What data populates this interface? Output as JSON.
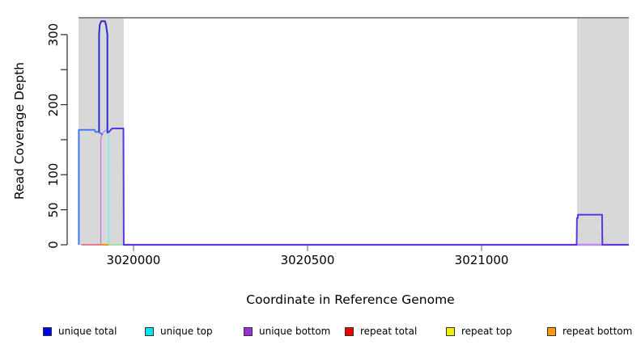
{
  "figure": {
    "ylabel": "Read Coverage Depth",
    "xlabel": "Coordinate in Reference Genome"
  },
  "chart_data": {
    "type": "line",
    "title": "",
    "xlabel": "Coordinate in Reference Genome",
    "ylabel": "Read Coverage Depth",
    "xlim": [
      3019842,
      3021423
    ],
    "ylim": [
      0,
      324
    ],
    "grid": false,
    "legend_position": "bottom",
    "x_ticks": [
      {
        "value": 3020000,
        "label": "3020000"
      },
      {
        "value": 3020500,
        "label": "3020500"
      },
      {
        "value": 3021000,
        "label": "3021000"
      }
    ],
    "y_ticks": [
      {
        "value": 0,
        "label": "0"
      },
      {
        "value": 50,
        "label": "50"
      },
      {
        "value": 100,
        "label": "100"
      },
      {
        "value": 150,
        "label": ""
      },
      {
        "value": 200,
        "label": "200"
      },
      {
        "value": 250,
        "label": ""
      },
      {
        "value": 300,
        "label": "300"
      }
    ],
    "highlight_regions": [
      {
        "name": "shaded-region-left",
        "x0": 3019842,
        "x1": 3019972,
        "color": "#d8d8d8"
      },
      {
        "name": "shaded-region-right",
        "x0": 3021274,
        "x1": 3021423,
        "color": "#d8d8d8"
      }
    ],
    "series": [
      {
        "name": "repeat-total-baseline",
        "color": "#EE3366",
        "width": 1.2,
        "points": [
          [
            3019850,
            0
          ],
          [
            3019904,
            0
          ]
        ]
      },
      {
        "name": "repeat-bottom-baseline",
        "color": "#FF9900",
        "width": 2,
        "points": [
          [
            3019904,
            0
          ],
          [
            3019930,
            0
          ]
        ]
      },
      {
        "name": "baseline-overlap-left",
        "color": "#8FD98F",
        "width": 1.6,
        "points": [
          [
            3019930,
            0
          ],
          [
            3019971,
            0
          ]
        ]
      },
      {
        "name": "baseline-overlap-right",
        "color": "#8FD98F",
        "width": 1.6,
        "points": [
          [
            3021277,
            0
          ],
          [
            3021345,
            0
          ]
        ]
      },
      {
        "name": "unique-bottom-spike",
        "color": "#CD6FE8",
        "width": 1.2,
        "points": [
          [
            3019906,
            0
          ],
          [
            3019906,
            150
          ],
          [
            3019909,
            158
          ],
          [
            3019916,
            162
          ],
          [
            3019922,
            163
          ]
        ]
      },
      {
        "name": "unique-top-spike",
        "color": "#7FE8EE",
        "width": 1.6,
        "points": [
          [
            3019929,
            0
          ],
          [
            3019929,
            158
          ],
          [
            3019926,
            163
          ],
          [
            3019919,
            165
          ]
        ]
      },
      {
        "name": "unique-bottom-zero-line",
        "color": "#BD8BF2",
        "width": 2.6,
        "points": [
          [
            3019972,
            0
          ],
          [
            3021423,
            0
          ]
        ]
      },
      {
        "name": "unique-total-left-block",
        "color": "#4579EE",
        "width": 2,
        "points": [
          [
            3019843,
            0
          ],
          [
            3019843,
            164
          ],
          [
            3019888,
            164
          ],
          [
            3019891,
            161
          ],
          [
            3019901,
            161
          ],
          [
            3019906,
            159
          ],
          [
            3019912,
            157
          ]
        ]
      },
      {
        "name": "unique-total-peak",
        "color": "#2B2BDC",
        "width": 2,
        "points": [
          [
            3019901,
            161
          ],
          [
            3019901,
            300
          ],
          [
            3019903,
            314
          ],
          [
            3019907,
            319
          ],
          [
            3019918,
            319
          ],
          [
            3019921,
            314
          ],
          [
            3019925,
            300
          ],
          [
            3019925,
            159
          ]
        ]
      },
      {
        "name": "unique-total-right-block",
        "color": "#5B36E0",
        "width": 2,
        "points": [
          [
            3019925,
            161
          ],
          [
            3019930,
            161
          ],
          [
            3019933,
            163
          ],
          [
            3019939,
            166
          ],
          [
            3019971,
            166
          ],
          [
            3019972,
            0
          ],
          [
            3021273,
            0
          ],
          [
            3021274,
            38
          ],
          [
            3021276,
            38
          ],
          [
            3021277,
            43
          ],
          [
            3021346,
            43
          ],
          [
            3021347,
            0
          ],
          [
            3021423,
            0
          ]
        ]
      }
    ],
    "legend": [
      {
        "label": "unique total",
        "color": "#0000EE"
      },
      {
        "label": "unique top",
        "color": "#00E5EE"
      },
      {
        "label": "unique bottom",
        "color": "#9B2FD6"
      },
      {
        "label": "repeat total",
        "color": "#EE0000"
      },
      {
        "label": "repeat top",
        "color": "#EEEE00"
      },
      {
        "label": "repeat bottom",
        "color": "#FF9912"
      }
    ],
    "frame_top_color": "#8c8c8c",
    "axis_color": "#2a2a2a",
    "x_tick_color": "#7d7d7d"
  }
}
